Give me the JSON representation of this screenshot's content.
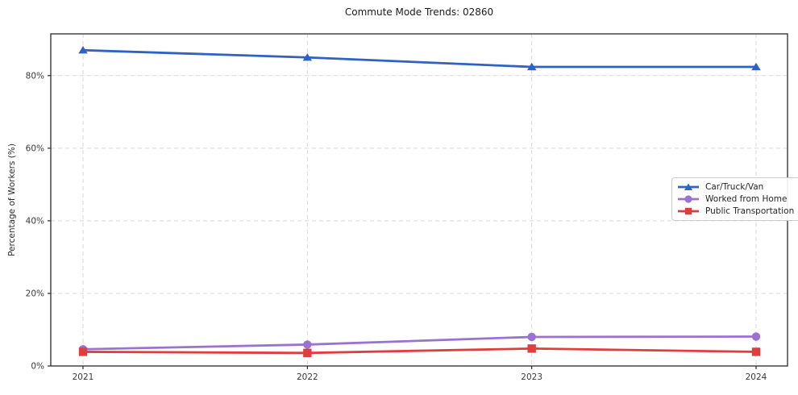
{
  "chart_data": {
    "type": "line",
    "title": "Commute Mode Trends: 02860",
    "xlabel": "",
    "ylabel": "Percentage of Workers (%)",
    "categories": [
      "2021",
      "2022",
      "2023",
      "2024"
    ],
    "y_ticks": [
      0,
      20,
      40,
      60,
      80
    ],
    "y_tick_labels": [
      "0%",
      "20%",
      "40%",
      "60%",
      "80%"
    ],
    "ylim": [
      0,
      91.5
    ],
    "grid": true,
    "grid_style": "dashed",
    "legend_position": "center-right",
    "colors": {
      "grid": "#d7d7d7",
      "spine": "#2a2a2a",
      "tick_label": "#3a3a3a",
      "legend_border": "#cccccc"
    },
    "series": [
      {
        "name": "Car/Truck/Van",
        "color": "#2e62c6",
        "marker": "triangle",
        "values": [
          87.0,
          85.0,
          82.4,
          82.4
        ]
      },
      {
        "name": "Worked from Home",
        "color": "#9b72d2",
        "marker": "circle",
        "values": [
          4.6,
          5.9,
          8.0,
          8.1
        ]
      },
      {
        "name": "Public Transportation",
        "color": "#e03e3e",
        "marker": "square",
        "values": [
          3.9,
          3.6,
          4.8,
          3.9
        ]
      }
    ]
  }
}
